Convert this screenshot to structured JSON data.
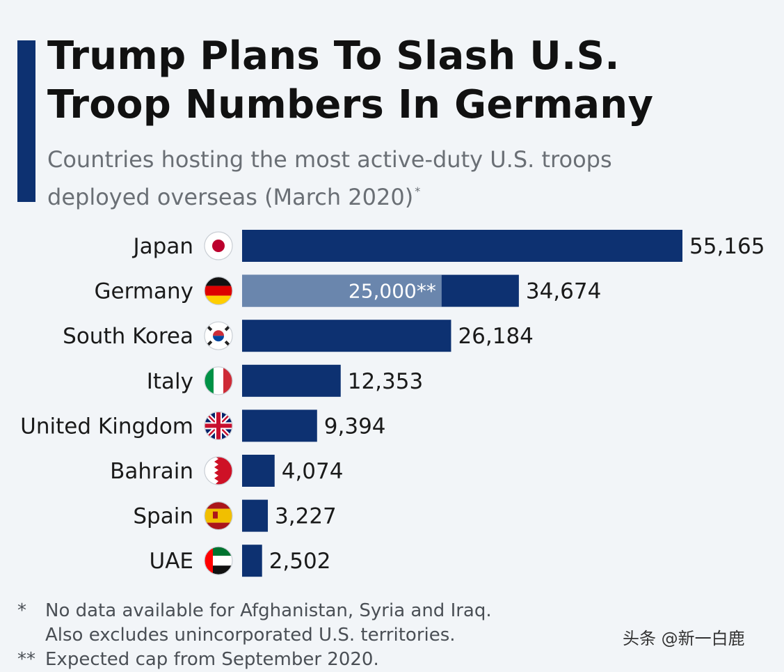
{
  "title_line1": "Trump Plans To Slash U.S.",
  "title_line2": "Troop Numbers In Germany",
  "subtitle_line1": "Countries hosting the most active-duty U.S. troops",
  "subtitle_line2": "deployed overseas (March 2020)",
  "subtitle_mark": "*",
  "colors": {
    "bar": "#0d3171",
    "bar_highlight": "#6a86ad",
    "accent": "#0d3171"
  },
  "chart_data": {
    "type": "bar",
    "orientation": "horizontal",
    "title": "Trump Plans To Slash U.S. Troop Numbers In Germany",
    "categories": [
      "Japan",
      "Germany",
      "South Korea",
      "Italy",
      "United Kingdom",
      "Bahrain",
      "Spain",
      "UAE"
    ],
    "values": [
      55165,
      34674,
      26184,
      12353,
      9394,
      4074,
      3227,
      2502
    ],
    "value_labels": [
      "55,165",
      "34,674",
      "26,184",
      "12,353",
      "9,394",
      "4,074",
      "3,227",
      "2,502"
    ],
    "flags": [
      "japan-flag-icon",
      "germany-flag-icon",
      "south-korea-flag-icon",
      "italy-flag-icon",
      "uk-flag-icon",
      "bahrain-flag-icon",
      "spain-flag-icon",
      "uae-flag-icon"
    ],
    "overlay": {
      "category": "Germany",
      "value": 25000,
      "label": "25,000**"
    },
    "xlim": [
      0,
      55165
    ]
  },
  "footnotes": [
    {
      "mark": "*",
      "lines": [
        "No data available for Afghanistan, Syria and Iraq.",
        "Also excludes unincorporated U.S. territories."
      ]
    },
    {
      "mark": "**",
      "lines": [
        "Expected cap from September 2020."
      ]
    }
  ],
  "watermark": "头条 @新一白鹿"
}
